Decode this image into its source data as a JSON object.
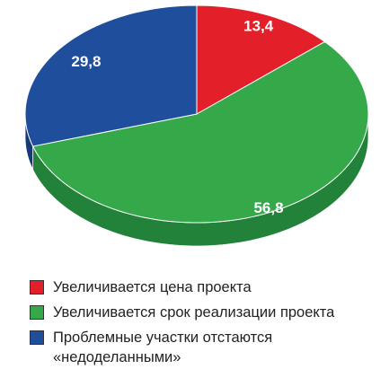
{
  "chart_data": {
    "type": "pie",
    "categories": [
      "Увеличивается цена проекта",
      "Увеличивается срок реализации проекта",
      "Проблемные участки отстаются «недоделанными»"
    ],
    "values": [
      13.4,
      56.8,
      29.8
    ],
    "value_labels": [
      "13,4",
      "56,8",
      "29,8"
    ],
    "colors": [
      "#e3202a",
      "#35a94a",
      "#1f4e9d"
    ],
    "side_colors": [
      "#a8161d",
      "#23823a",
      "#163a78"
    ]
  }
}
